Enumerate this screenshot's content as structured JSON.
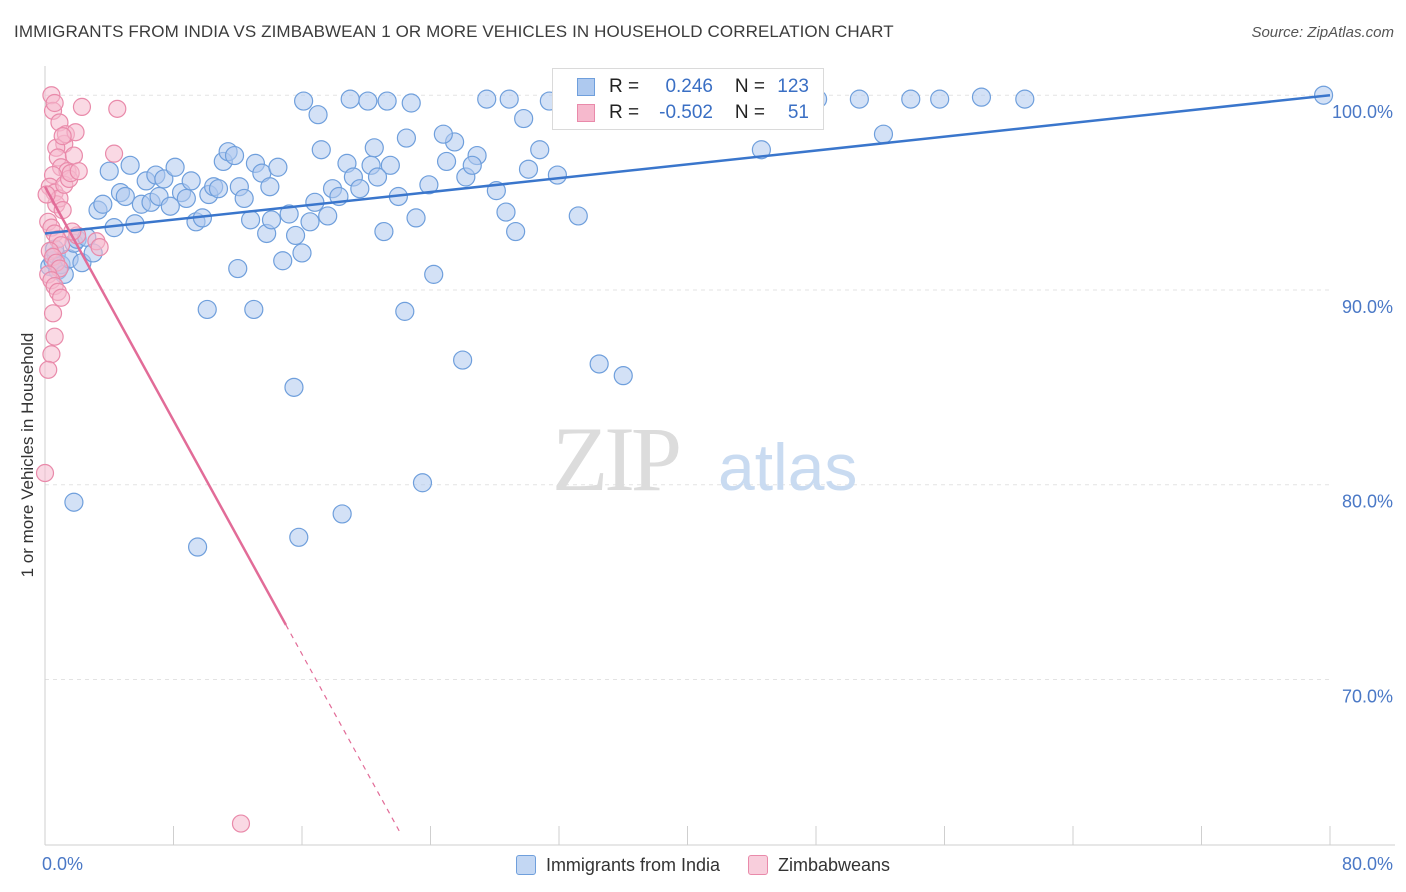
{
  "header": {
    "title": "IMMIGRANTS FROM INDIA VS ZIMBABWEAN 1 OR MORE VEHICLES IN HOUSEHOLD CORRELATION CHART",
    "source": "Source: ZipAtlas.com"
  },
  "watermark": {
    "zip": "ZIP",
    "atlas": "atlas"
  },
  "legend": {
    "series1": {
      "r_label": "R =",
      "r_value": "0.246",
      "n_label": "N =",
      "n_value": "123"
    },
    "series2": {
      "r_label": "R =",
      "r_value": "-0.502",
      "n_label": "N =",
      "n_value": "51"
    }
  },
  "colors": {
    "india_fill": "#aec9ef",
    "india_stroke": "#6f9fdc",
    "india_line": "#3a76cc",
    "zim_fill": "#f6b9cd",
    "zim_stroke": "#e98aaa",
    "zim_line": "#e26c98",
    "grid": "#e3e3e3",
    "tick_label": "#4a78c6"
  },
  "chart_data": {
    "type": "scatter",
    "title": "IMMIGRANTS FROM INDIA VS ZIMBABWEAN 1 OR MORE VEHICLES IN HOUSEHOLD CORRELATION CHART",
    "xlabel": "",
    "ylabel": "1 or more Vehicles in Household",
    "xlim": [
      0,
      80
    ],
    "ylim": [
      61.5,
      101.5
    ],
    "x_tick_labels": [
      "0.0%",
      "80.0%"
    ],
    "y_ticks": [
      70,
      80,
      90,
      100
    ],
    "y_tick_labels": [
      "70.0%",
      "80.0%",
      "90.0%",
      "100.0%"
    ],
    "grid": true,
    "legend_position": "bottom",
    "series": [
      {
        "name": "Immigrants from India",
        "r": 0.246,
        "n": 123,
        "trend": {
          "x": [
            0,
            80
          ],
          "y": [
            92.9,
            100.0
          ],
          "dashed_from": null
        },
        "points": [
          [
            0.3,
            91.2
          ],
          [
            0.5,
            91.5
          ],
          [
            0.7,
            91.8
          ],
          [
            0.8,
            91.0
          ],
          [
            1.0,
            91.3
          ],
          [
            0.6,
            92.1
          ],
          [
            1.2,
            90.8
          ],
          [
            1.5,
            91.6
          ],
          [
            1.8,
            92.4
          ],
          [
            2.0,
            92.6
          ],
          [
            2.3,
            91.4
          ],
          [
            2.6,
            92.7
          ],
          [
            3.0,
            91.9
          ],
          [
            3.3,
            94.1
          ],
          [
            3.6,
            94.4
          ],
          [
            4.0,
            96.1
          ],
          [
            4.3,
            93.2
          ],
          [
            4.7,
            95.0
          ],
          [
            5.0,
            94.8
          ],
          [
            5.3,
            96.4
          ],
          [
            5.6,
            93.4
          ],
          [
            6.0,
            94.4
          ],
          [
            6.3,
            95.6
          ],
          [
            6.6,
            94.5
          ],
          [
            6.9,
            95.9
          ],
          [
            7.1,
            94.8
          ],
          [
            7.4,
            95.7
          ],
          [
            7.8,
            94.3
          ],
          [
            8.1,
            96.3
          ],
          [
            8.5,
            95.0
          ],
          [
            8.8,
            94.7
          ],
          [
            9.1,
            95.6
          ],
          [
            9.4,
            93.5
          ],
          [
            9.8,
            93.7
          ],
          [
            10.2,
            94.9
          ],
          [
            10.5,
            95.3
          ],
          [
            10.8,
            95.2
          ],
          [
            11.1,
            96.6
          ],
          [
            11.4,
            97.1
          ],
          [
            11.8,
            96.9
          ],
          [
            12.1,
            95.3
          ],
          [
            12.4,
            94.7
          ],
          [
            12.8,
            93.6
          ],
          [
            13.1,
            96.5
          ],
          [
            13.5,
            96.0
          ],
          [
            13.8,
            92.9
          ],
          [
            14.1,
            93.6
          ],
          [
            14.5,
            96.3
          ],
          [
            14.8,
            91.5
          ],
          [
            15.2,
            93.9
          ],
          [
            15.6,
            92.8
          ],
          [
            16.0,
            91.9
          ],
          [
            16.5,
            93.5
          ],
          [
            16.8,
            94.5
          ],
          [
            17.2,
            97.2
          ],
          [
            17.6,
            93.8
          ],
          [
            17.9,
            95.2
          ],
          [
            18.3,
            94.8
          ],
          [
            18.8,
            96.5
          ],
          [
            19.2,
            95.8
          ],
          [
            19.6,
            95.2
          ],
          [
            20.1,
            99.7
          ],
          [
            20.5,
            97.3
          ],
          [
            21.1,
            93.0
          ],
          [
            21.5,
            96.4
          ],
          [
            22.0,
            94.8
          ],
          [
            22.5,
            97.8
          ],
          [
            23.1,
            93.7
          ],
          [
            23.9,
            95.4
          ],
          [
            24.2,
            90.8
          ],
          [
            25.0,
            96.6
          ],
          [
            25.5,
            97.6
          ],
          [
            26.2,
            95.8
          ],
          [
            26.9,
            96.9
          ],
          [
            27.5,
            99.8
          ],
          [
            28.1,
            95.1
          ],
          [
            28.7,
            94.0
          ],
          [
            29.3,
            93.0
          ],
          [
            30.1,
            96.2
          ],
          [
            30.8,
            97.2
          ],
          [
            31.9,
            95.9
          ],
          [
            33.2,
            93.8
          ],
          [
            34.5,
            86.2
          ],
          [
            36.0,
            85.6
          ],
          [
            1.8,
            79.1
          ],
          [
            9.5,
            76.8
          ],
          [
            13.0,
            89.0
          ],
          [
            15.5,
            85.0
          ],
          [
            15.8,
            77.3
          ],
          [
            18.5,
            78.5
          ],
          [
            20.3,
            96.4
          ],
          [
            20.7,
            95.8
          ],
          [
            22.4,
            88.9
          ],
          [
            23.5,
            80.1
          ],
          [
            26.0,
            86.4
          ],
          [
            24.8,
            98.0
          ],
          [
            14.0,
            95.3
          ],
          [
            17.0,
            99.0
          ],
          [
            19.0,
            99.8
          ],
          [
            21.3,
            99.7
          ],
          [
            22.8,
            99.6
          ],
          [
            28.9,
            99.8
          ],
          [
            12.0,
            91.1
          ],
          [
            10.1,
            89.0
          ],
          [
            31.4,
            99.7
          ],
          [
            34.1,
            99.8
          ],
          [
            37.0,
            99.8
          ],
          [
            42.0,
            100.2
          ],
          [
            43.5,
            99.8
          ],
          [
            44.6,
            97.2
          ],
          [
            48.1,
            99.8
          ],
          [
            50.7,
            99.8
          ],
          [
            52.2,
            98.0
          ],
          [
            53.9,
            99.8
          ],
          [
            55.7,
            99.8
          ],
          [
            58.3,
            99.9
          ],
          [
            61.0,
            99.8
          ],
          [
            36.5,
            99.6
          ],
          [
            39.7,
            99.7
          ],
          [
            79.6,
            100.0
          ],
          [
            16.1,
            99.7
          ],
          [
            26.6,
            96.4
          ],
          [
            29.8,
            98.8
          ],
          [
            35.6,
            99.7
          ],
          [
            38.2,
            99.7
          ],
          [
            40.4,
            99.8
          ]
        ]
      },
      {
        "name": "Zimbabweans",
        "r": -0.502,
        "n": 51,
        "trend": {
          "x": [
            0,
            22.2
          ],
          "y": [
            95.3,
            62.0
          ],
          "dashed_from": 15.0
        },
        "points": [
          [
            0.4,
            100.0
          ],
          [
            0.5,
            99.2
          ],
          [
            0.6,
            99.6
          ],
          [
            0.9,
            98.6
          ],
          [
            1.2,
            97.5
          ],
          [
            1.3,
            98.0
          ],
          [
            0.7,
            97.3
          ],
          [
            0.8,
            96.8
          ],
          [
            1.0,
            96.3
          ],
          [
            1.4,
            96.1
          ],
          [
            0.5,
            95.9
          ],
          [
            0.3,
            95.3
          ],
          [
            0.6,
            95.0
          ],
          [
            0.7,
            94.4
          ],
          [
            0.9,
            94.7
          ],
          [
            1.1,
            94.1
          ],
          [
            0.2,
            93.5
          ],
          [
            0.4,
            93.2
          ],
          [
            0.6,
            92.9
          ],
          [
            0.8,
            92.6
          ],
          [
            1.0,
            92.3
          ],
          [
            0.3,
            92.0
          ],
          [
            0.5,
            91.7
          ],
          [
            0.7,
            91.4
          ],
          [
            0.9,
            91.1
          ],
          [
            0.2,
            90.8
          ],
          [
            0.4,
            90.5
          ],
          [
            0.6,
            90.2
          ],
          [
            0.8,
            89.9
          ],
          [
            1.0,
            89.6
          ],
          [
            0.5,
            88.8
          ],
          [
            0.6,
            87.6
          ],
          [
            0.4,
            86.7
          ],
          [
            0.2,
            85.9
          ],
          [
            1.2,
            95.4
          ],
          [
            1.5,
            95.7
          ],
          [
            1.8,
            96.9
          ],
          [
            2.0,
            92.8
          ],
          [
            3.2,
            92.5
          ],
          [
            3.4,
            92.2
          ],
          [
            4.3,
            97.0
          ],
          [
            4.5,
            99.3
          ],
          [
            2.3,
            99.4
          ],
          [
            1.9,
            98.1
          ],
          [
            1.6,
            96.0
          ],
          [
            1.7,
            93.0
          ],
          [
            0.1,
            94.9
          ],
          [
            0.0,
            80.6
          ],
          [
            12.2,
            62.6
          ],
          [
            1.1,
            97.9
          ],
          [
            2.1,
            96.1
          ]
        ]
      }
    ]
  }
}
